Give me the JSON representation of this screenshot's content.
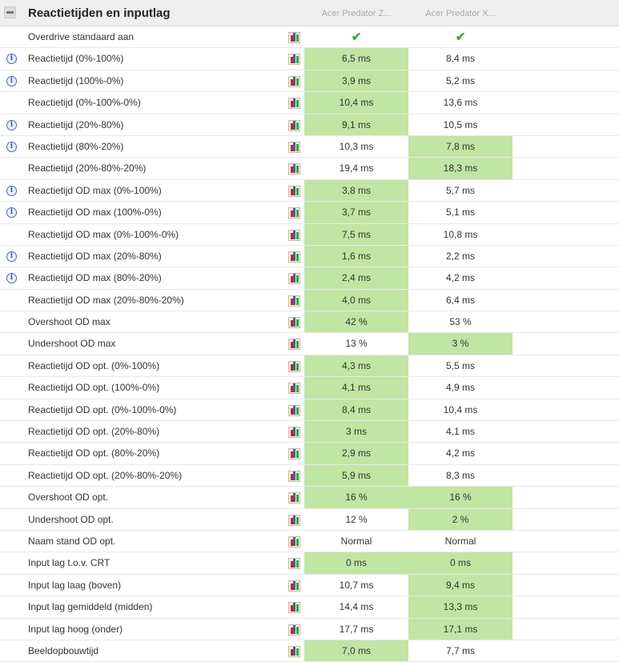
{
  "header": {
    "title": "Reactietijden en inputlag",
    "columns": [
      "Acer Predator Z...",
      "Acer Predator X..."
    ]
  },
  "colors": {
    "highlight": "#c1e5a2"
  },
  "rows": [
    {
      "label": "Overdrive standaard aan",
      "info": false,
      "v": [
        "✔",
        "✔"
      ],
      "hl": [
        0,
        0
      ],
      "check": true
    },
    {
      "label": "Reactietijd (0%-100%)",
      "info": true,
      "v": [
        "6,5 ms",
        "8,4 ms"
      ],
      "hl": [
        1,
        0
      ]
    },
    {
      "label": "Reactietijd (100%-0%)",
      "info": true,
      "v": [
        "3,9 ms",
        "5,2 ms"
      ],
      "hl": [
        1,
        0
      ]
    },
    {
      "label": "Reactietijd (0%-100%-0%)",
      "info": false,
      "v": [
        "10,4 ms",
        "13,6 ms"
      ],
      "hl": [
        1,
        0
      ]
    },
    {
      "label": "Reactietijd (20%-80%)",
      "info": true,
      "v": [
        "9,1 ms",
        "10,5 ms"
      ],
      "hl": [
        1,
        0
      ]
    },
    {
      "label": "Reactietijd (80%-20%)",
      "info": true,
      "v": [
        "10,3 ms",
        "7,8 ms"
      ],
      "hl": [
        0,
        1
      ]
    },
    {
      "label": "Reactietijd (20%-80%-20%)",
      "info": false,
      "v": [
        "19,4 ms",
        "18,3 ms"
      ],
      "hl": [
        0,
        1
      ]
    },
    {
      "label": "Reactietijd OD max (0%-100%)",
      "info": true,
      "v": [
        "3,8 ms",
        "5,7 ms"
      ],
      "hl": [
        1,
        0
      ]
    },
    {
      "label": "Reactietijd OD max (100%-0%)",
      "info": true,
      "v": [
        "3,7 ms",
        "5,1 ms"
      ],
      "hl": [
        1,
        0
      ]
    },
    {
      "label": "Reactietijd OD max (0%-100%-0%)",
      "info": false,
      "v": [
        "7,5 ms",
        "10,8 ms"
      ],
      "hl": [
        1,
        0
      ]
    },
    {
      "label": "Reactietijd OD max (20%-80%)",
      "info": true,
      "v": [
        "1,6 ms",
        "2,2 ms"
      ],
      "hl": [
        1,
        0
      ]
    },
    {
      "label": "Reactietijd OD max (80%-20%)",
      "info": true,
      "v": [
        "2,4 ms",
        "4,2 ms"
      ],
      "hl": [
        1,
        0
      ]
    },
    {
      "label": "Reactietijd OD max (20%-80%-20%)",
      "info": false,
      "v": [
        "4,0 ms",
        "6,4 ms"
      ],
      "hl": [
        1,
        0
      ]
    },
    {
      "label": "Overshoot OD max",
      "info": false,
      "v": [
        "42 %",
        "53 %"
      ],
      "hl": [
        1,
        0
      ]
    },
    {
      "label": "Undershoot OD max",
      "info": false,
      "v": [
        "13 %",
        "3 %"
      ],
      "hl": [
        0,
        1
      ]
    },
    {
      "label": "Reactietijd OD opt. (0%-100%)",
      "info": false,
      "v": [
        "4,3 ms",
        "5,5 ms"
      ],
      "hl": [
        1,
        0
      ]
    },
    {
      "label": "Reactietijd OD opt. (100%-0%)",
      "info": false,
      "v": [
        "4,1 ms",
        "4,9 ms"
      ],
      "hl": [
        1,
        0
      ]
    },
    {
      "label": "Reactietijd OD opt. (0%-100%-0%)",
      "info": false,
      "v": [
        "8,4 ms",
        "10,4 ms"
      ],
      "hl": [
        1,
        0
      ]
    },
    {
      "label": "Reactietijd OD opt. (20%-80%)",
      "info": false,
      "v": [
        "3 ms",
        "4,1 ms"
      ],
      "hl": [
        1,
        0
      ]
    },
    {
      "label": "Reactietijd OD opt. (80%-20%)",
      "info": false,
      "v": [
        "2,9 ms",
        "4,2 ms"
      ],
      "hl": [
        1,
        0
      ]
    },
    {
      "label": "Reactietijd OD opt. (20%-80%-20%)",
      "info": false,
      "v": [
        "5,9 ms",
        "8,3 ms"
      ],
      "hl": [
        1,
        0
      ]
    },
    {
      "label": "Overshoot OD opt.",
      "info": false,
      "v": [
        "16 %",
        "16 %"
      ],
      "hl": [
        1,
        1
      ]
    },
    {
      "label": "Undershoot OD opt.",
      "info": false,
      "v": [
        "12 %",
        "2 %"
      ],
      "hl": [
        0,
        1
      ]
    },
    {
      "label": "Naam stand OD opt.",
      "info": false,
      "v": [
        "Normal",
        "Normal"
      ],
      "hl": [
        0,
        0
      ]
    },
    {
      "label": "Input lag t.o.v. CRT",
      "info": false,
      "v": [
        "0 ms",
        "0 ms"
      ],
      "hl": [
        1,
        1
      ]
    },
    {
      "label": "Input lag laag (boven)",
      "info": false,
      "v": [
        "10,7 ms",
        "9,4 ms"
      ],
      "hl": [
        0,
        1
      ]
    },
    {
      "label": "Input lag gemiddeld (midden)",
      "info": false,
      "v": [
        "14,4 ms",
        "13,3 ms"
      ],
      "hl": [
        0,
        1
      ]
    },
    {
      "label": "Input lag hoog (onder)",
      "info": false,
      "v": [
        "17,7 ms",
        "17,1 ms"
      ],
      "hl": [
        0,
        1
      ]
    },
    {
      "label": "Beeldopbouwtijd",
      "info": false,
      "v": [
        "7,0 ms",
        "7,7 ms"
      ],
      "hl": [
        1,
        0
      ]
    }
  ]
}
